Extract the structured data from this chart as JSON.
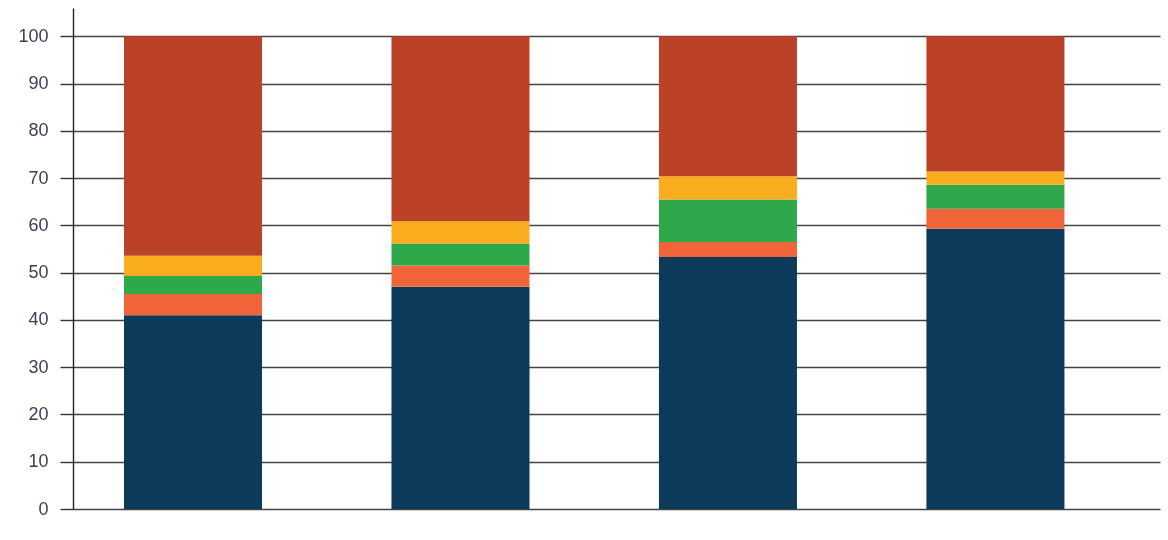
{
  "chart_data": {
    "type": "bar",
    "stacked": true,
    "categories": [
      null,
      null,
      null,
      null
    ],
    "series": [
      {
        "color": "#0b3a5b",
        "values": [
          41,
          47,
          53.3,
          59.3
        ]
      },
      {
        "color": "#f0643a",
        "values": [
          4.5,
          4.5,
          3.2,
          4.2
        ]
      },
      {
        "color": "#2ea84a",
        "values": [
          3.8,
          4.7,
          9,
          5.1
        ]
      },
      {
        "color": "#f8ac1e",
        "values": [
          4.3,
          4.7,
          4.9,
          2.8
        ]
      },
      {
        "color": "#bc4227",
        "values": [
          46.4,
          39.1,
          29.6,
          28.6
        ]
      }
    ],
    "ylim": [
      0,
      106
    ],
    "yticks": [
      0,
      10,
      20,
      30,
      40,
      50,
      60,
      70,
      80,
      90,
      100
    ],
    "grid": "y",
    "tick_labels": "y"
  }
}
